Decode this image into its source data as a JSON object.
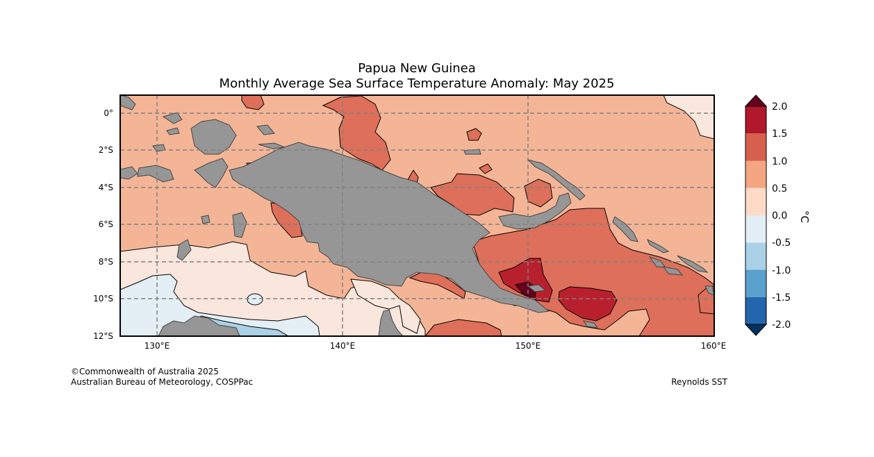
{
  "title": {
    "line1": "Papua New Guinea",
    "line2": "Monthly Average Sea Surface Temperature Anomaly: May 2025"
  },
  "map": {
    "lat_labels": [
      "0°",
      "2°S",
      "4°S",
      "6°S",
      "8°S",
      "10°S",
      "12°S"
    ],
    "lon_labels": [
      "130°E",
      "140°E",
      "150°E",
      "160°E"
    ],
    "lat_range": [
      -12,
      1
    ],
    "lon_range": [
      128,
      160
    ],
    "land_color": "#969696",
    "grid_lats": [
      0,
      -2,
      -4,
      -6,
      -8,
      -10
    ],
    "grid_lons": [
      130,
      140,
      150
    ],
    "bg_color": "#f4b596"
  },
  "colorbar": {
    "unit": "°C",
    "ticks": [
      "2.0",
      "1.5",
      "1.0",
      "0.5",
      "0.0",
      "-0.5",
      "-1.0",
      "-1.5",
      "-2.0"
    ],
    "tick_values": [
      2.0,
      1.5,
      1.0,
      0.5,
      0.0,
      -0.5,
      -1.0,
      -1.5,
      -2.0
    ],
    "colors": [
      "#b2182b",
      "#d6604d",
      "#f4a582",
      "#fddbc7",
      "#e3eef5",
      "#aad1e6",
      "#5aa0cd",
      "#2466ad"
    ],
    "over_color": "#67001f",
    "under_color": "#053061"
  },
  "footer": {
    "copyright": "©Commonwealth of Australia 2025",
    "agency": "Australian Bureau of Meteorology, COSPPac",
    "source": "Reynolds SST"
  }
}
